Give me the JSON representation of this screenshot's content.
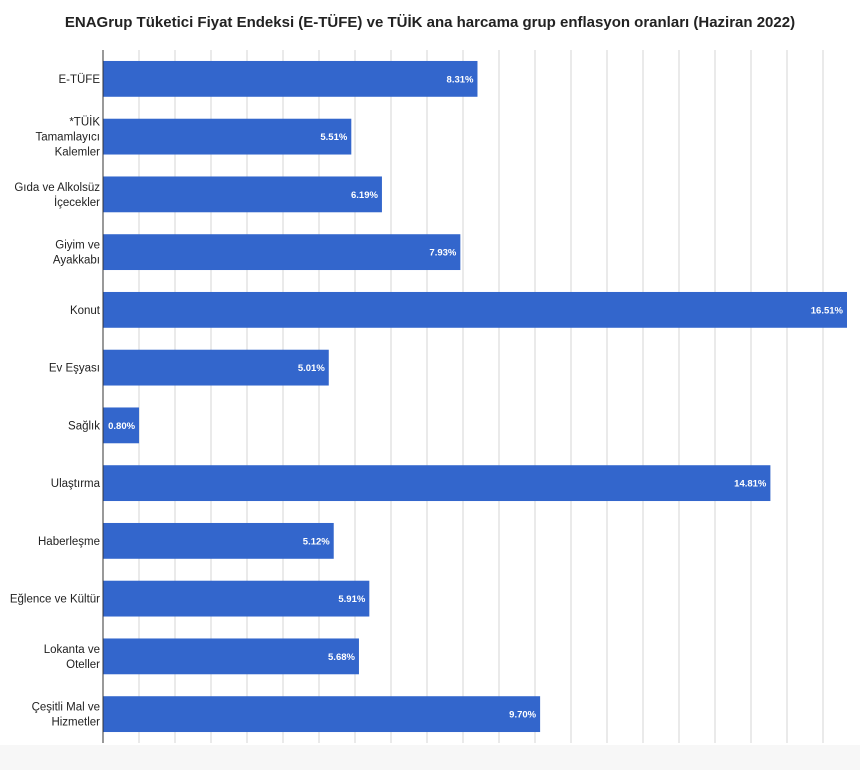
{
  "chart_data": {
    "type": "bar",
    "orientation": "horizontal",
    "title": "ENAGrup Tüketici Fiyat Endeksi (E-TÜFE) ve TÜİK ana harcama grup enflasyon oranları (Haziran 2022)",
    "categories": [
      "E-TÜFE",
      "*TÜİK Tamamlayıcı Kalemler",
      "Gıda ve Alkolsüz İçecekler",
      "Giyim ve Ayakkabı",
      "Konut",
      "Ev Eşyası",
      "Sağlık",
      "Ulaştırma",
      "Haberleşme",
      "Eğlence ve Kültür",
      "Lokanta ve Oteller",
      "Çeşitli Mal ve Hizmetler"
    ],
    "category_lines": [
      [
        "E-TÜFE"
      ],
      [
        "*TÜİK",
        "Tamamlayıcı",
        "Kalemler"
      ],
      [
        "Gıda ve Alkolsüz",
        "İçecekler"
      ],
      [
        "Giyim ve",
        "Ayakkabı"
      ],
      [
        "Konut"
      ],
      [
        "Ev Eşyası"
      ],
      [
        "Sağlık"
      ],
      [
        "Ulaştırma"
      ],
      [
        "Haberleşme"
      ],
      [
        "Eğlence ve Kültür"
      ],
      [
        "Lokanta ve",
        "Oteller"
      ],
      [
        "Çeşitli Mal ve",
        "Hizmetler"
      ]
    ],
    "values": [
      8.31,
      5.51,
      6.19,
      7.93,
      16.51,
      5.01,
      0.8,
      14.81,
      5.12,
      5.91,
      5.68,
      9.7
    ],
    "value_labels": [
      "8.31%",
      "5.51%",
      "6.19%",
      "7.93%",
      "16.51%",
      "5.01%",
      "0.80%",
      "14.81%",
      "5.12%",
      "5.91%",
      "5.68%",
      "9.70%"
    ],
    "xlim": [
      0,
      16.51
    ],
    "xlabel": "",
    "ylabel": "",
    "grid": true,
    "legend": "none",
    "bar_color": "#3366cc"
  }
}
